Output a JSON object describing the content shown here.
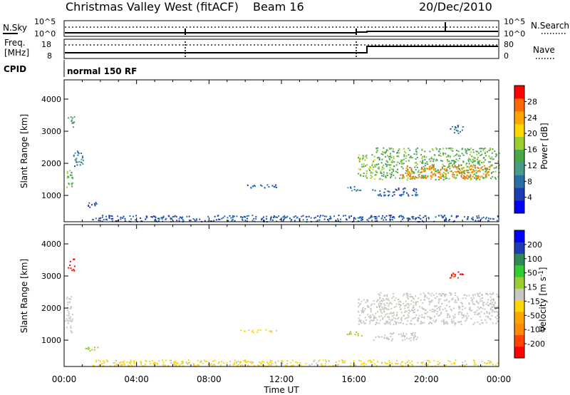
{
  "header": {
    "station": "Christmas Valley West (fitACF)",
    "beam": "Beam 16",
    "date": "20/Dec/2010"
  },
  "noise_panel": {
    "left_label": "N.Sky",
    "right_label": "N.Search",
    "left_ticks": [
      "10^5",
      "10^0"
    ],
    "right_ticks": [
      "10^5",
      "10^0"
    ]
  },
  "freq_panel": {
    "left_label_line1": "Freq.",
    "left_label_line2": "[MHz]",
    "right_label": "Nave",
    "left_ticks": [
      "18",
      "8"
    ],
    "right_ticks": [
      "80",
      "0"
    ]
  },
  "cpid": {
    "label": "CPID",
    "mode": "normal 150 RF"
  },
  "chart_data": [
    {
      "type": "heatmap",
      "title": "",
      "quantity": "Power",
      "ylabel": "Slant Range [km]",
      "xlabel": "Time UT",
      "x_ticks": [
        "00:00",
        "04:00",
        "08:00",
        "12:00",
        "16:00",
        "20:00",
        "00:00"
      ],
      "xlim_hours": [
        0,
        24
      ],
      "ylim_km": [
        180,
        4600
      ],
      "y_ticks": [
        "4000",
        "3000",
        "2000",
        "1000"
      ],
      "colorbar": {
        "label": "Power [dB]",
        "ticks": [
          "28",
          "24",
          "20",
          "16",
          "12",
          "8",
          "4"
        ],
        "range": [
          0,
          30
        ],
        "colors": [
          "#0000ff",
          "#1e3cb4",
          "#2a6fa8",
          "#4a9a8a",
          "#4aa84a",
          "#9acd32",
          "#ffd700",
          "#ffa500",
          "#ff6a00",
          "#ff0000"
        ]
      },
      "scatter_regions": [
        {
          "t0": 0.05,
          "t1": 0.45,
          "r0": 1200,
          "r1": 1850,
          "value": 14
        },
        {
          "t0": 0.2,
          "t1": 0.55,
          "r0": 3150,
          "r1": 3550,
          "value": 12
        },
        {
          "t0": 0.5,
          "t1": 1.1,
          "r0": 1900,
          "r1": 2400,
          "value": 8
        },
        {
          "t0": 1.1,
          "t1": 1.9,
          "r0": 650,
          "r1": 800,
          "value": 6
        },
        {
          "t0": 9.7,
          "t1": 11.7,
          "r0": 1250,
          "r1": 1350,
          "value": 6
        },
        {
          "t0": 15.6,
          "t1": 16.4,
          "r0": 1150,
          "r1": 1300,
          "value": 8
        },
        {
          "t0": 16.2,
          "t1": 17.2,
          "r0": 1500,
          "r1": 2300,
          "value": 16
        },
        {
          "t0": 17.2,
          "t1": 24,
          "r0": 1500,
          "r1": 2500,
          "value": 14
        },
        {
          "t0": 18.5,
          "t1": 23.5,
          "r0": 1550,
          "r1": 1950,
          "value": 24
        },
        {
          "t0": 17.0,
          "t1": 19.5,
          "r0": 1000,
          "r1": 1250,
          "value": 6
        },
        {
          "t0": 21.2,
          "t1": 22.0,
          "r0": 2950,
          "r1": 3200,
          "value": 8
        },
        {
          "t0": 1.5,
          "t1": 24,
          "r0": 200,
          "r1": 400,
          "value": 6
        }
      ]
    },
    {
      "type": "heatmap",
      "title": "",
      "quantity": "Velocity",
      "ylabel": "Slant Range [km]",
      "xlabel": "Time UT",
      "x_ticks": [
        "00:00",
        "04:00",
        "08:00",
        "12:00",
        "16:00",
        "20:00",
        "00:00"
      ],
      "xlim_hours": [
        0,
        24
      ],
      "ylim_km": [
        180,
        4600
      ],
      "y_ticks": [
        "4000",
        "3000",
        "2000",
        "1000"
      ],
      "colorbar": {
        "label_main": "Velocity [m s",
        "label_sup": "-1",
        "label_end": "]",
        "ticks": [
          "200",
          "100",
          "50",
          "15",
          "-15",
          "-50",
          "-100",
          "-200"
        ],
        "range": [
          -250,
          250
        ],
        "colors": [
          "#ff0000",
          "#ff4500",
          "#ff8c00",
          "#ffa500",
          "#ffd700",
          "#c8c8c0",
          "#9acd32",
          "#32cd32",
          "#2e8b57",
          "#1e3cb4",
          "#0000ff"
        ]
      },
      "scatter_regions": [
        {
          "t0": 0.05,
          "t1": 0.45,
          "r0": 1200,
          "r1": 2400,
          "value": 0
        },
        {
          "t0": 0.2,
          "t1": 0.55,
          "r0": 3150,
          "r1": 3550,
          "value": -220
        },
        {
          "t0": 1.1,
          "t1": 1.9,
          "r0": 650,
          "r1": 800,
          "value": 40
        },
        {
          "t0": 9.7,
          "t1": 11.7,
          "r0": 1250,
          "r1": 1350,
          "value": -30
        },
        {
          "t0": 15.6,
          "t1": 16.4,
          "r0": 1150,
          "r1": 1300,
          "value": 40
        },
        {
          "t0": 16.2,
          "t1": 17.2,
          "r0": 1500,
          "r1": 2300,
          "value": 0
        },
        {
          "t0": 17.2,
          "t1": 24,
          "r0": 1500,
          "r1": 2500,
          "value": 0
        },
        {
          "t0": 17.0,
          "t1": 19.5,
          "r0": 1000,
          "r1": 1250,
          "value": 0
        },
        {
          "t0": 21.2,
          "t1": 22.0,
          "r0": 2950,
          "r1": 3200,
          "value": -200
        },
        {
          "t0": 1.5,
          "t1": 24,
          "r0": 200,
          "r1": 400,
          "value": -30
        }
      ]
    }
  ]
}
